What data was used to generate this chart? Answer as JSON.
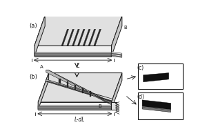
{
  "fig_width": 3.0,
  "fig_height": 2.0,
  "dpi": 100,
  "bg_color": "#ffffff",
  "label_a": "(a)",
  "label_b": "(b)",
  "label_c": "(c)",
  "label_d": "(d)",
  "label_L": "L",
  "label_LdL": "L-dL",
  "label_A": "A",
  "label_B_top": "B",
  "label_B_bot": "B",
  "line_color": "#1a1a1a",
  "top_face_color": "#e0e0e0",
  "side_face_color": "#c8c8c8",
  "front_face_color": "#f0f0f0",
  "dark_stripe_color": "#2a2a2a",
  "film_top_color": "#d0d0d0",
  "film_edge_color": "#909090"
}
